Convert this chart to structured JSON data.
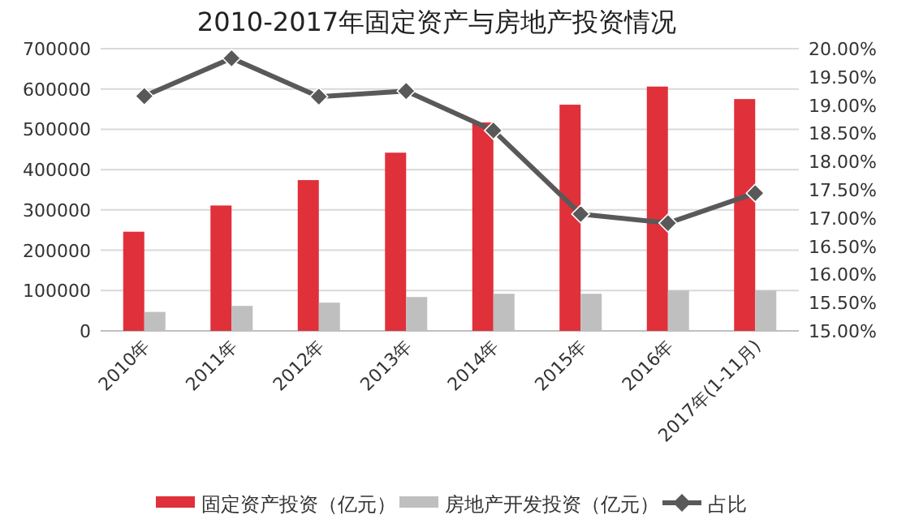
{
  "chart_data": {
    "type": "bar",
    "title": "2010-2017年固定资产与房地产投资情况",
    "categories": [
      "2010年",
      "2011年",
      "2012年",
      "2013年",
      "2014年",
      "2015年",
      "2016年",
      "2017年(1-11月)"
    ],
    "series": [
      {
        "name": "固定资产投资（亿元）",
        "color": "#e0303a",
        "values": [
          246000,
          311000,
          374000,
          442000,
          517000,
          561000,
          606000,
          575000
        ]
      },
      {
        "name": "房地产开发投资（亿元）",
        "color": "#bfbfbf",
        "values": [
          47000,
          62000,
          70000,
          84000,
          92000,
          92000,
          100000,
          100000
        ]
      },
      {
        "name": "占比",
        "type": "line",
        "axis": "y2",
        "color": "#595959",
        "values": [
          19.16,
          19.83,
          19.15,
          19.25,
          18.55,
          17.07,
          16.91,
          17.44
        ]
      }
    ],
    "ylim": [
      0,
      700000
    ],
    "yticks": [
      0,
      100000,
      200000,
      300000,
      400000,
      500000,
      600000,
      700000
    ],
    "y2lim": [
      15,
      20
    ],
    "y2ticks": [
      {
        "value": 15,
        "label": "15.00%"
      },
      {
        "value": 15.5,
        "label": "15.50%"
      },
      {
        "value": 16,
        "label": "16.00%"
      },
      {
        "value": 16.5,
        "label": "16.50%"
      },
      {
        "value": 17,
        "label": "17.00%"
      },
      {
        "value": 17.5,
        "label": "17.50%"
      },
      {
        "value": 18,
        "label": "18.00%"
      },
      {
        "value": 18.5,
        "label": "18.50%"
      },
      {
        "value": 19,
        "label": "19.00%"
      },
      {
        "value": 19.5,
        "label": "19.50%"
      },
      {
        "value": 20,
        "label": "20.00%"
      }
    ],
    "grid": "y",
    "legend": "bottom",
    "marker": "diamond",
    "line_style": "solid"
  }
}
